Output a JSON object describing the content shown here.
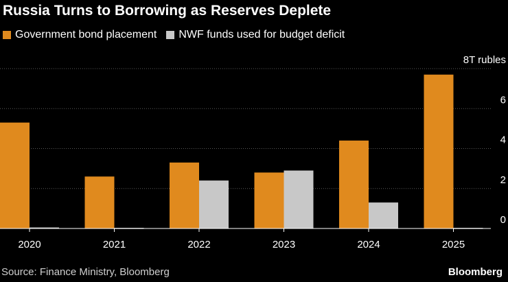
{
  "title": "Russia Turns to Borrowing as Reserves Deplete",
  "source": "Source: Finance Ministry, Bloomberg",
  "brand": "Bloomberg",
  "colors": {
    "bond": "#E08A1E",
    "nwf": "#C8C8C8",
    "grid": "#5a5a5a",
    "axis": "#ffffff"
  },
  "chart_data": {
    "type": "bar",
    "categories": [
      "2020",
      "2021",
      "2022",
      "2023",
      "2024",
      "2025"
    ],
    "series": [
      {
        "name": "Government bond placement",
        "values": [
          5.3,
          2.6,
          3.3,
          2.8,
          4.4,
          7.7
        ]
      },
      {
        "name": "NWF funds used for budget deficit",
        "values": [
          0.05,
          0.03,
          2.4,
          2.9,
          1.3,
          0.03
        ]
      }
    ],
    "ylim": [
      0,
      8
    ],
    "yticks": [
      "0",
      "2",
      "4",
      "6",
      "8T rubles"
    ],
    "ytick_values": [
      0,
      2,
      4,
      6,
      8
    ],
    "ylabel": "",
    "xlabel": "",
    "grid": true
  }
}
